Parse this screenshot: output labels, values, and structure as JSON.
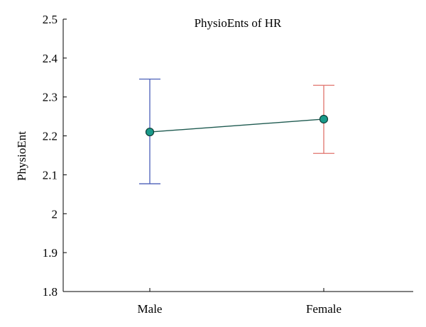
{
  "chart_data": {
    "type": "line",
    "title": "PhysioEnts of HR",
    "xlabel": "",
    "ylabel": "PhysioEnt",
    "categories": [
      "Male",
      "Female"
    ],
    "ylim": [
      1.8,
      2.5
    ],
    "yticks": [
      "1.8",
      "1.9",
      "2",
      "2.1",
      "2.2",
      "2.3",
      "2.4",
      "2.5"
    ],
    "series": [
      {
        "values": [
          2.21,
          2.243
        ],
        "error_low": [
          2.077,
          2.155
        ],
        "error_high": [
          2.346,
          2.33
        ]
      }
    ],
    "grid": false,
    "colors": {
      "line": "#1e5a50",
      "marker_fill": "#1a9a8a",
      "marker_edge": "#103f38",
      "error_bars": [
        "#4a5fb8",
        "#e0726b"
      ],
      "axis": "#000000"
    }
  }
}
